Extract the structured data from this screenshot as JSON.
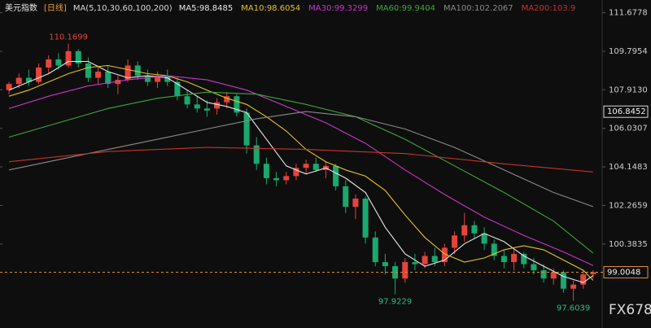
{
  "chart_data": {
    "type": "candlestick",
    "title": "美元指数",
    "period": "[日线]",
    "indicator": "MA(5,10,30,60,100,200)",
    "watermark": "FX678",
    "ylim": [
      96.6,
      112.1
    ],
    "yticks": [
      111.6778,
      109.7954,
      {
        "value": 107.913,
        "label": "107.9130"
      },
      106.0307,
      104.1483,
      102.2659,
      100.3835
    ],
    "reference_price": 106.8452,
    "up_color": "#e5443b",
    "down_color": "#1aa86e",
    "candles": {
      "open": [
        107.9,
        108.2,
        108.5,
        108.3,
        109.0,
        109.4,
        109.1,
        109.8,
        109.2,
        108.5,
        108.8,
        108.2,
        108.4,
        109.1,
        108.6,
        108.3,
        108.6,
        108.3,
        107.6,
        107.2,
        107.0,
        107.0,
        107.3,
        107.6,
        106.8,
        105.2,
        104.3,
        103.6,
        103.5,
        103.7,
        104.1,
        104.3,
        104.0,
        104.2,
        103.2,
        102.2,
        102.6,
        100.7,
        99.5,
        99.3,
        98.7,
        99.5,
        99.4,
        99.8,
        99.5,
        100.2,
        100.8,
        101.3,
        100.9,
        100.4,
        99.8,
        99.5,
        99.9,
        99.4,
        99.1,
        98.7,
        99.0,
        98.2,
        98.4,
        98.9
      ],
      "high": [
        108.3,
        108.7,
        108.9,
        109.2,
        109.6,
        109.7,
        110.1699,
        109.9,
        109.5,
        109.0,
        109.1,
        108.6,
        109.4,
        109.3,
        108.9,
        108.8,
        108.9,
        108.5,
        107.9,
        107.6,
        107.4,
        107.5,
        107.8,
        107.7,
        107.0,
        105.6,
        104.6,
        103.9,
        103.9,
        104.3,
        104.5,
        104.6,
        104.4,
        104.3,
        103.5,
        102.8,
        102.7,
        101.0,
        99.9,
        99.5,
        99.7,
        99.9,
        100.0,
        100.2,
        100.4,
        101.0,
        101.9,
        101.5,
        101.2,
        100.6,
        100.1,
        100.2,
        100.0,
        99.7,
        99.4,
        99.2,
        99.1,
        98.6,
        99.1,
        99.1
      ],
      "low": [
        107.7,
        108.0,
        108.1,
        108.2,
        108.7,
        108.9,
        109.0,
        109.0,
        108.3,
        108.2,
        108.0,
        107.7,
        108.3,
        108.4,
        108.1,
        108.0,
        108.1,
        107.4,
        107.0,
        106.8,
        106.6,
        106.7,
        107.0,
        106.6,
        104.8,
        104.0,
        103.3,
        103.2,
        103.3,
        103.5,
        103.8,
        103.9,
        103.6,
        103.0,
        101.9,
        101.6,
        100.4,
        99.3,
        98.9,
        97.9229,
        98.5,
        99.1,
        99.2,
        99.3,
        99.3,
        99.9,
        100.5,
        100.6,
        100.1,
        99.6,
        99.2,
        99.1,
        99.2,
        98.9,
        98.5,
        98.4,
        98.0,
        97.6039,
        98.2,
        98.7
      ],
      "close": [
        108.2,
        108.5,
        108.3,
        109.0,
        109.4,
        109.1,
        109.8,
        109.2,
        108.5,
        108.8,
        108.2,
        108.4,
        109.1,
        108.6,
        108.3,
        108.6,
        108.3,
        107.6,
        107.2,
        107.0,
        106.9,
        107.3,
        107.6,
        106.8,
        105.2,
        104.3,
        103.6,
        103.5,
        103.7,
        104.1,
        104.3,
        104.0,
        104.2,
        103.2,
        102.2,
        102.6,
        100.7,
        99.5,
        99.3,
        98.7,
        99.5,
        99.4,
        99.8,
        99.5,
        100.2,
        100.8,
        101.3,
        100.9,
        100.4,
        99.8,
        99.5,
        99.9,
        99.4,
        99.1,
        98.7,
        99.0,
        98.2,
        98.4,
        98.9,
        99.0048
      ]
    },
    "series": [
      {
        "name": "MA5:98.8485",
        "color": "#e8e8e8",
        "x": [
          0,
          2,
          4,
          6,
          8,
          10,
          12,
          14,
          16,
          18,
          20,
          22,
          24,
          26,
          28,
          30,
          32,
          34,
          36,
          38,
          40,
          42,
          44,
          46,
          48,
          50,
          52,
          54,
          56,
          58,
          59
        ],
        "values": [
          107.9,
          108.3,
          108.7,
          109.3,
          109.3,
          108.8,
          108.5,
          108.6,
          108.5,
          107.9,
          107.3,
          107.1,
          106.8,
          105.5,
          104.2,
          103.8,
          104.1,
          103.6,
          102.9,
          101.2,
          99.9,
          99.3,
          99.6,
          100.4,
          100.9,
          100.5,
          99.8,
          99.3,
          98.8,
          98.5,
          98.8485
        ]
      },
      {
        "name": "MA10:98.6054",
        "color": "#e6c229",
        "x": [
          0,
          2,
          4,
          6,
          8,
          10,
          12,
          14,
          16,
          18,
          20,
          22,
          24,
          26,
          28,
          30,
          32,
          34,
          36,
          38,
          40,
          42,
          44,
          46,
          48,
          50,
          52,
          54,
          56,
          58,
          59
        ],
        "values": [
          107.6,
          107.9,
          108.3,
          108.7,
          109.0,
          109.1,
          108.9,
          108.7,
          108.6,
          108.3,
          107.9,
          107.5,
          107.2,
          106.6,
          105.9,
          105.0,
          104.4,
          104.0,
          103.7,
          103.0,
          101.8,
          100.7,
          99.9,
          99.5,
          99.7,
          100.1,
          100.3,
          100.1,
          99.6,
          99.1,
          98.6054
        ]
      },
      {
        "name": "MA30:99.3299",
        "color": "#c936c9",
        "x": [
          0,
          4,
          8,
          12,
          16,
          20,
          24,
          28,
          32,
          36,
          40,
          44,
          48,
          52,
          56,
          59
        ],
        "values": [
          107.0,
          107.6,
          108.1,
          108.4,
          108.6,
          108.4,
          107.9,
          107.1,
          106.3,
          105.3,
          104.0,
          102.8,
          101.7,
          100.8,
          100.0,
          99.3299
        ]
      },
      {
        "name": "MA60:99.9404",
        "color": "#3fa63f",
        "x": [
          0,
          5,
          10,
          15,
          20,
          25,
          30,
          35,
          40,
          45,
          50,
          55,
          59
        ],
        "values": [
          105.6,
          106.3,
          107.0,
          107.5,
          107.8,
          107.7,
          107.2,
          106.6,
          105.5,
          104.2,
          102.9,
          101.5,
          99.9404
        ]
      },
      {
        "name": "MA100:102.2067",
        "color": "#8a8a8a",
        "x": [
          0,
          5,
          10,
          15,
          20,
          25,
          30,
          35,
          40,
          45,
          50,
          55,
          59
        ],
        "values": [
          104.0,
          104.5,
          105.0,
          105.5,
          106.0,
          106.5,
          106.85,
          106.6,
          106.0,
          105.1,
          104.0,
          102.9,
          102.2067
        ]
      },
      {
        "name": "MA200:103.9",
        "color": "#c8342c",
        "x": [
          0,
          10,
          20,
          30,
          40,
          50,
          59
        ],
        "values": [
          104.4,
          104.9,
          105.1,
          105.0,
          104.8,
          104.3,
          103.9
        ]
      }
    ]
  }
}
